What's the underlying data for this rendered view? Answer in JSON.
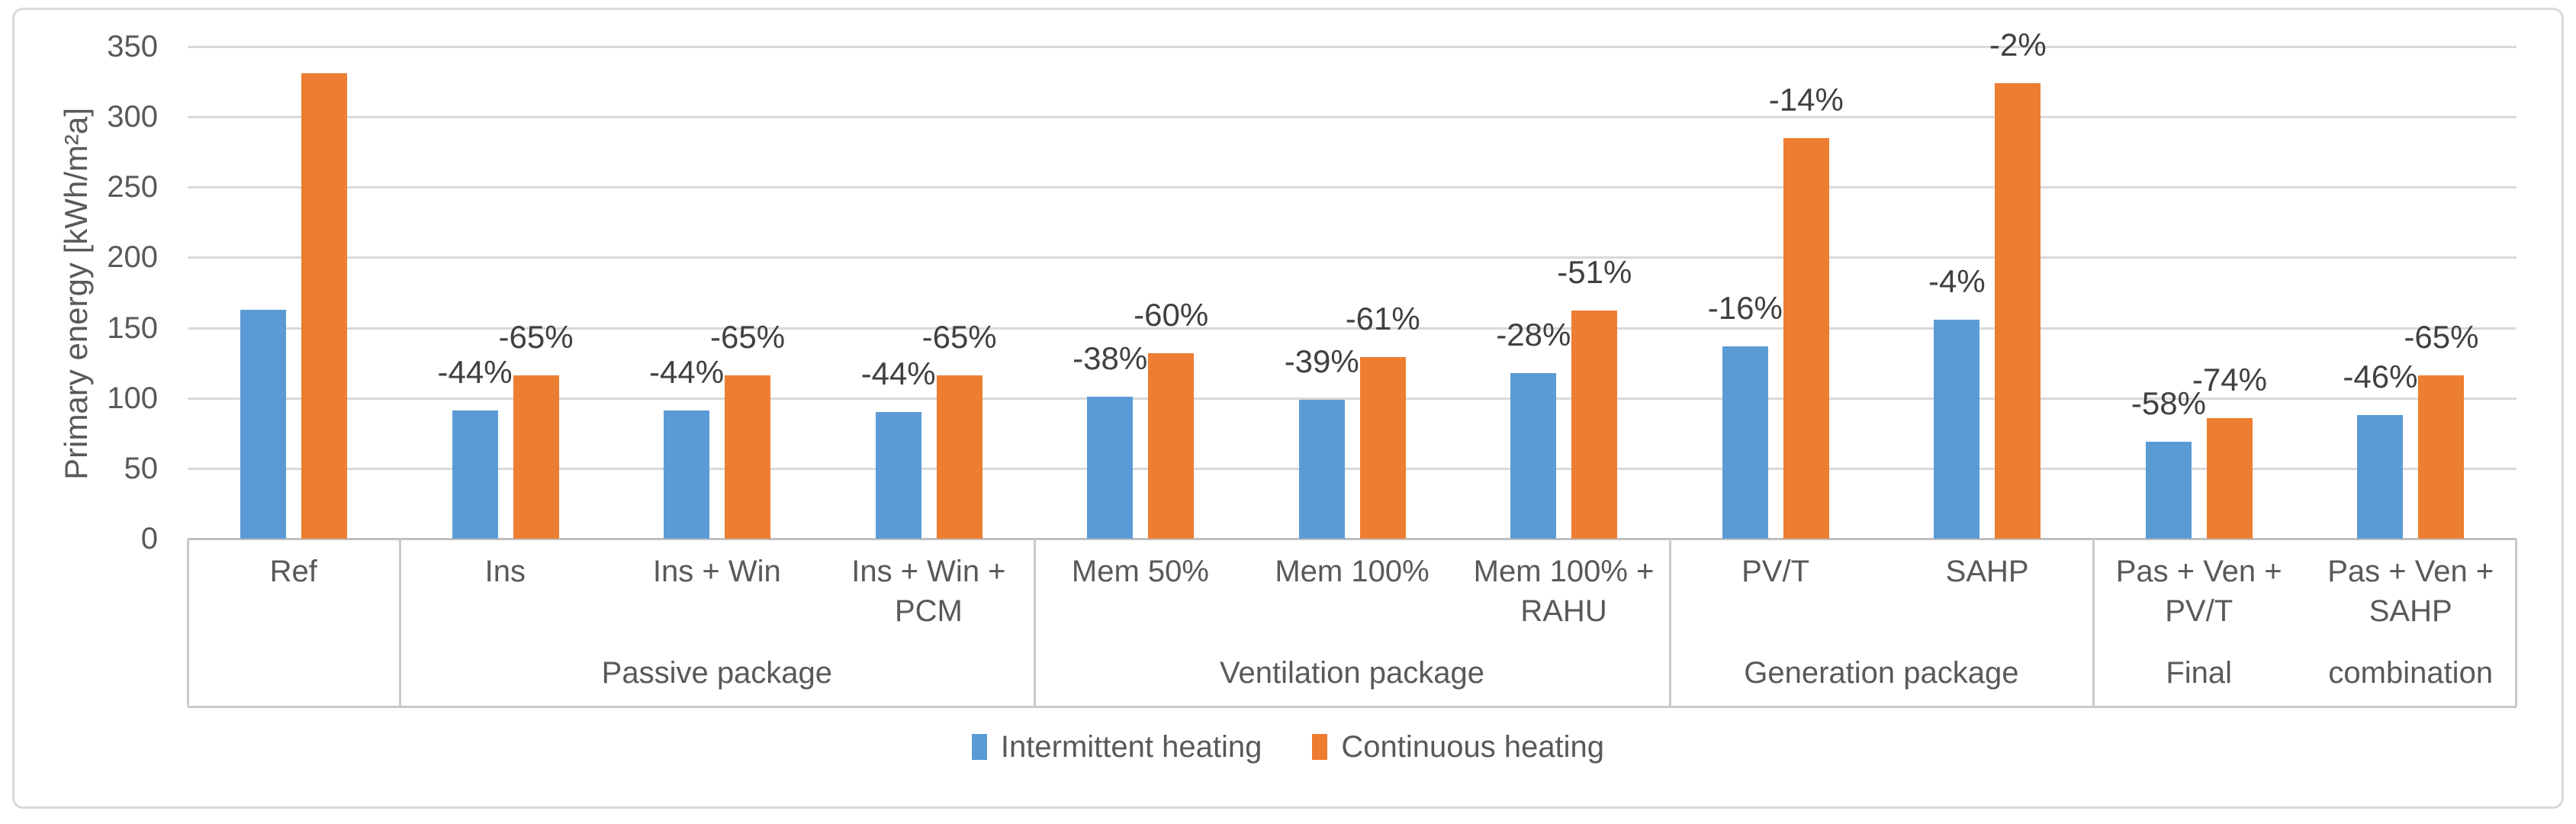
{
  "chart_data": {
    "type": "bar",
    "title": "",
    "ylabel": "Primary energy [kWh/m²a]",
    "ylim": [
      0,
      350
    ],
    "ytick_step": 50,
    "ytick_labels": [
      "0",
      "50",
      "100",
      "150",
      "200",
      "250",
      "300",
      "350"
    ],
    "grid": true,
    "legend_position": "bottom",
    "categories": [
      "Ref",
      "Ins",
      "Ins + Win",
      "Ins + Win + PCM",
      "Mem 50%",
      "Mem 100%",
      "Mem 100% + RAHU",
      "PV/T",
      "SAHP",
      "Pas + Ven + PV/T",
      "Pas + Ven + SAHP"
    ],
    "category_lines": [
      [
        "Ref"
      ],
      [
        "Ins"
      ],
      [
        "Ins + Win"
      ],
      [
        "Ins + Win +",
        "PCM"
      ],
      [
        "Mem 50%"
      ],
      [
        "Mem 100%"
      ],
      [
        "Mem 100% +",
        "RAHU"
      ],
      [
        "PV/T"
      ],
      [
        "SAHP"
      ],
      [
        "Pas + Ven +",
        "PV/T"
      ],
      [
        "Pas + Ven +",
        "SAHP"
      ]
    ],
    "groups": [
      {
        "label": "",
        "start": 0,
        "count": 1
      },
      {
        "label": "Passive package",
        "start": 1,
        "count": 3
      },
      {
        "label": "Ventilation package",
        "start": 4,
        "count": 3
      },
      {
        "label": "Generation package",
        "start": 7,
        "count": 2
      },
      {
        "label": "Final combination",
        "start": 9,
        "count": 2,
        "split_labels": [
          "Final",
          "combination"
        ]
      }
    ],
    "series": [
      {
        "name": "Intermittent heating",
        "color": "#5B9BD5",
        "values": [
          163,
          91,
          91,
          90,
          101,
          99,
          118,
          137,
          156,
          69,
          88
        ],
        "labels": [
          "",
          "-44%",
          "-44%",
          "-44%",
          "-38%",
          "-39%",
          "-28%",
          "-16%",
          "-4%",
          "-58%",
          "-46%"
        ]
      },
      {
        "name": "Continuous heating",
        "color": "#ED7D31",
        "values": [
          331,
          116,
          116,
          116,
          132,
          129,
          162,
          285,
          324,
          86,
          116
        ],
        "labels": [
          "",
          "-65%",
          "-65%",
          "-65%",
          "-60%",
          "-61%",
          "-51%",
          "-14%",
          "-2%",
          "-74%",
          "-65%"
        ]
      }
    ]
  },
  "styles": {
    "gridline_color": "#D9D9D9",
    "axis_line_color": "#BFBFBF",
    "box_line_color": "#C9C9C9",
    "text_color": "#595959",
    "label_color": "#404040",
    "frame_border_color": "#D9D9D9"
  }
}
